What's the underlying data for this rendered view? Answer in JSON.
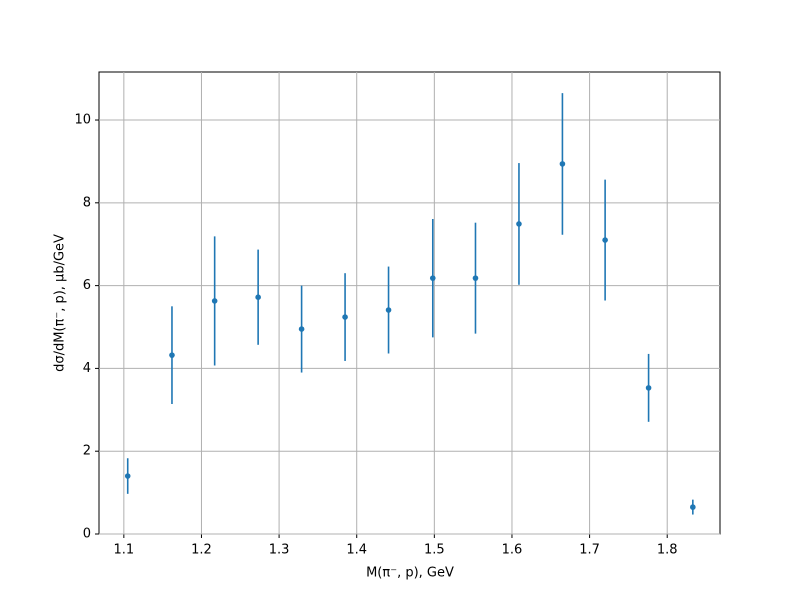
{
  "chart_data": {
    "type": "errorbar",
    "x_label": "M(π⁻, p), GeV",
    "y_label": "dσ/dM(π⁻, p), μb/GeV",
    "series": [
      {
        "color": "#1f77b4",
        "x": [
          1.105,
          1.162,
          1.217,
          1.273,
          1.329,
          1.385,
          1.441,
          1.498,
          1.553,
          1.609,
          1.665,
          1.72,
          1.776,
          1.833
        ],
        "values": [
          1.4,
          4.32,
          5.63,
          5.72,
          4.95,
          5.24,
          5.41,
          6.18,
          6.18,
          7.49,
          8.94,
          7.1,
          3.53,
          0.65
        ],
        "errors": [
          0.43,
          1.18,
          1.56,
          1.15,
          1.05,
          1.06,
          1.05,
          1.43,
          1.34,
          1.47,
          1.71,
          1.46,
          0.82,
          0.18
        ]
      }
    ],
    "xlim": [
      1.068,
      1.868
    ],
    "ylim": [
      0,
      11.16
    ],
    "xticks": [
      1.1,
      1.2,
      1.3,
      1.4,
      1.5,
      1.6,
      1.7,
      1.8
    ],
    "yticks": [
      0,
      2,
      4,
      6,
      8,
      10
    ],
    "grid": true
  }
}
